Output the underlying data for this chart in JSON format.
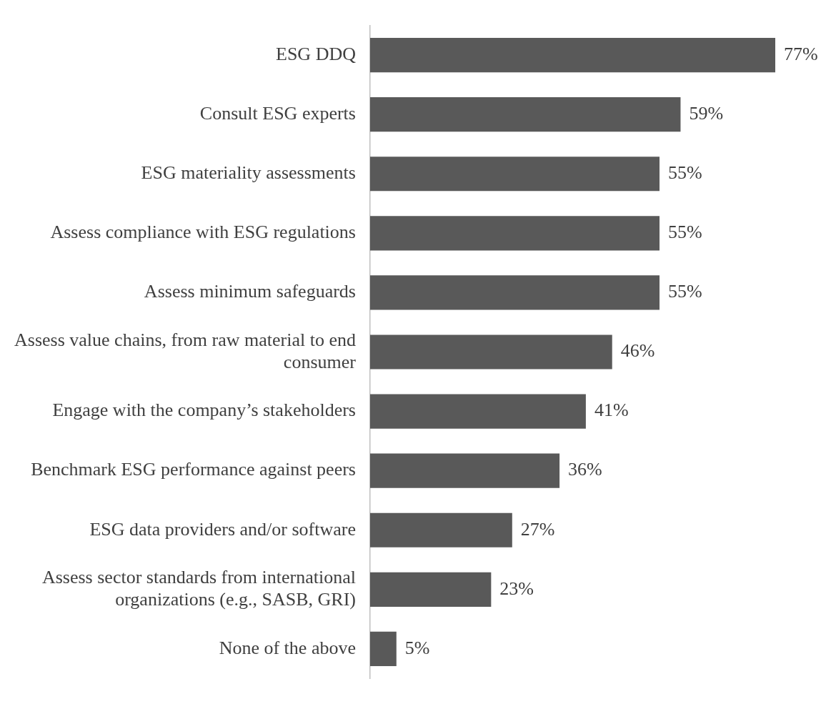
{
  "chart_data": {
    "type": "bar",
    "orientation": "horizontal",
    "color": "#595959",
    "categories": [
      "ESG DDQ",
      "Consult ESG experts",
      "ESG materiality assessments",
      "Assess compliance with ESG regulations",
      "Assess minimum safeguards",
      "Assess value chains, from raw material to end consumer",
      "Engage with the company’s stakeholders",
      "Benchmark ESG performance against peers",
      "ESG data providers and/or software",
      "Assess sector standards from international organizations (e.g., SASB, GRI)",
      "None of the above"
    ],
    "values": [
      77,
      59,
      55,
      55,
      55,
      46,
      41,
      36,
      27,
      23,
      5
    ],
    "value_labels": [
      "77%",
      "59%",
      "55%",
      "55%",
      "55%",
      "46%",
      "41%",
      "36%",
      "27%",
      "23%",
      "5%"
    ]
  }
}
